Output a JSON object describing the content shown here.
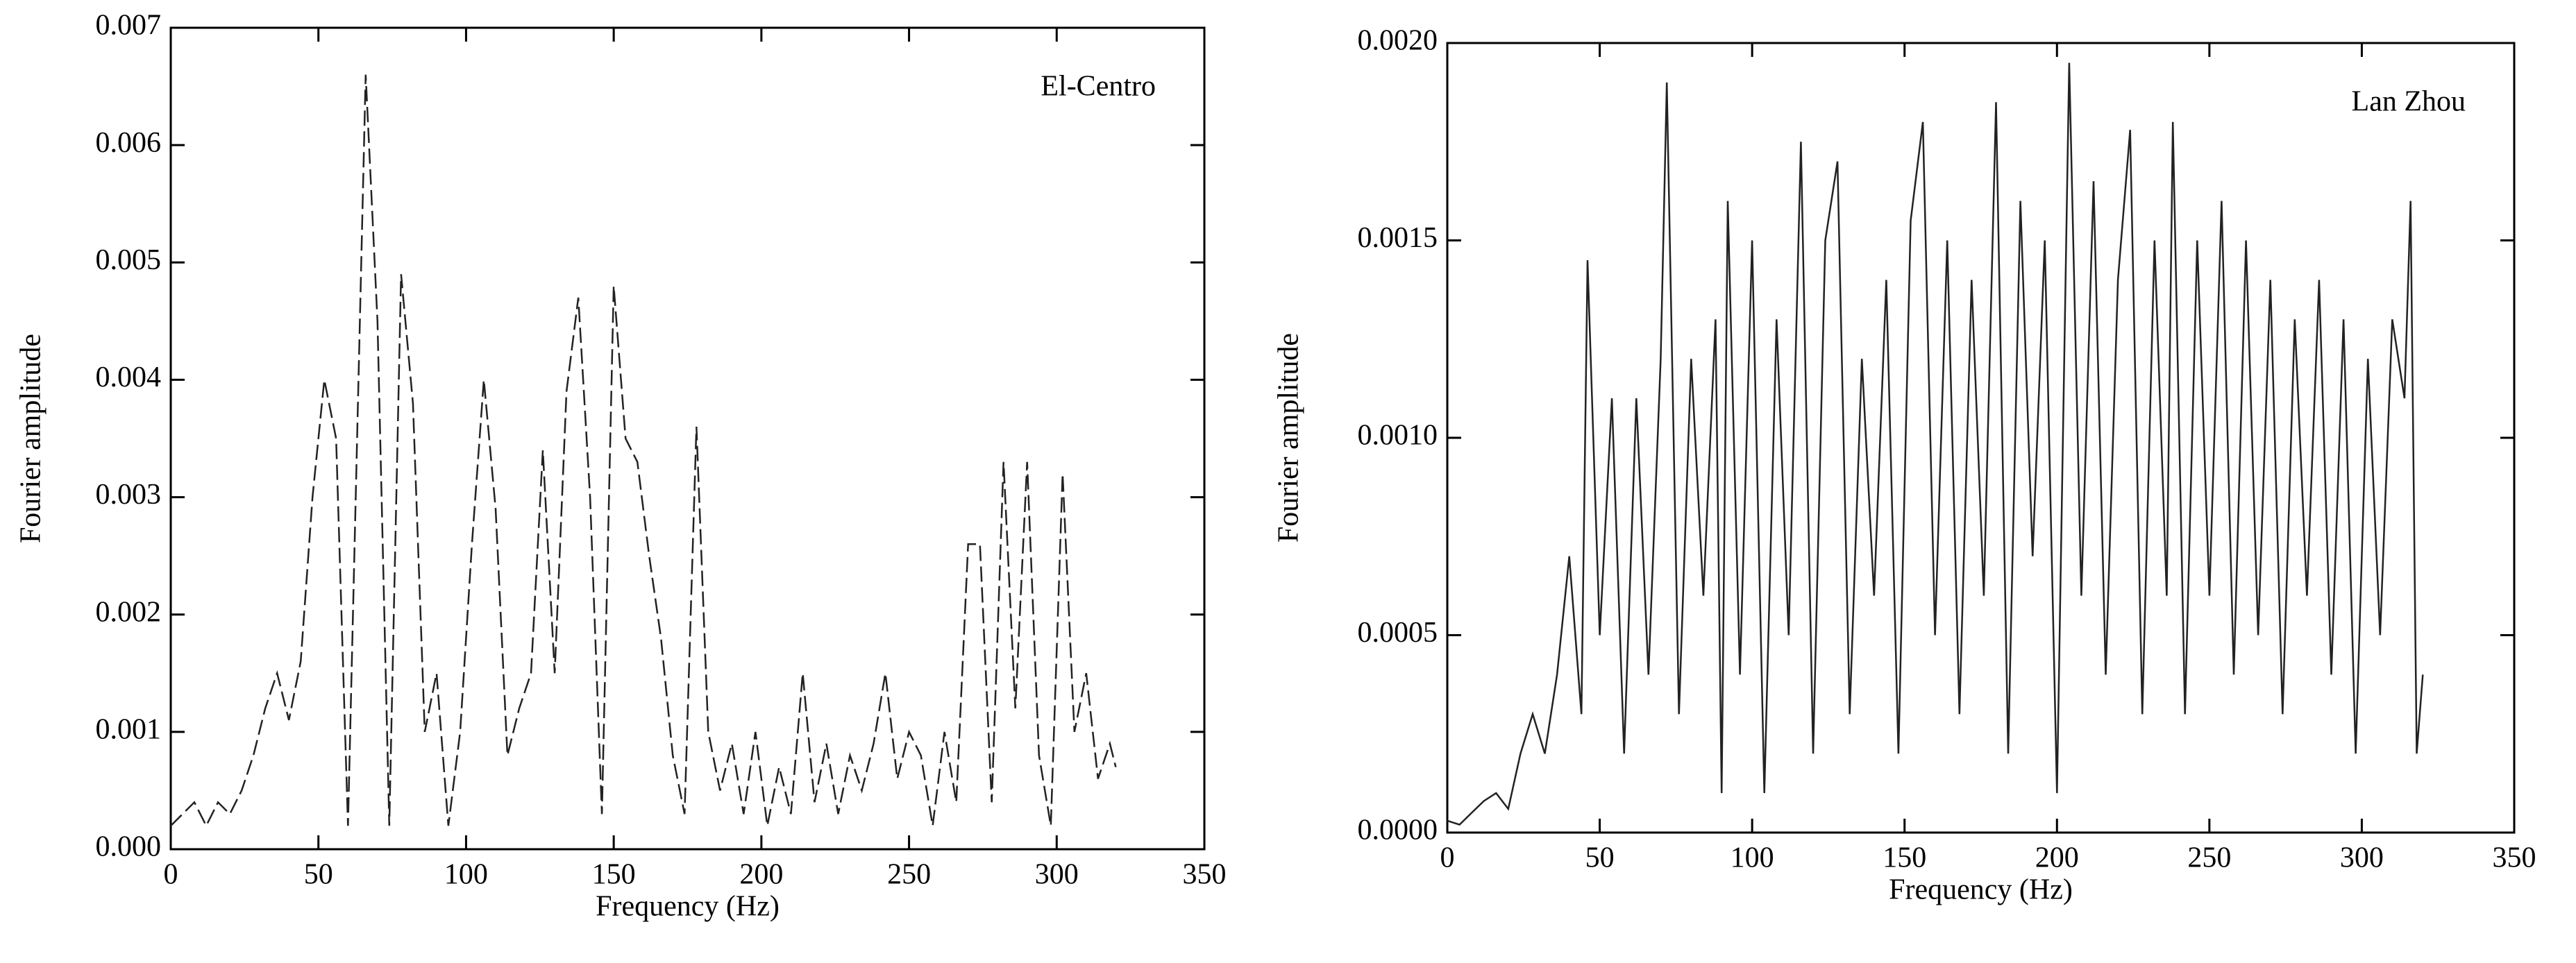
{
  "chart_data": [
    {
      "type": "line",
      "annotation": "El-Centro",
      "xlabel": "Frequency (Hz)",
      "ylabel": "Fourier amplitude",
      "xlim": [
        0,
        350
      ],
      "xticks": [
        0,
        50,
        100,
        150,
        200,
        250,
        300,
        350
      ],
      "ylim": [
        0,
        0.007
      ],
      "yticks": [
        {
          "value": 0,
          "label": "0.000"
        },
        {
          "value": 0.001,
          "label": "0.001"
        },
        {
          "value": 0.002,
          "label": "0.002"
        },
        {
          "value": 0.003,
          "label": "0.003"
        },
        {
          "value": 0.004,
          "label": "0.004"
        },
        {
          "value": 0.005,
          "label": "0.005"
        },
        {
          "value": 0.006,
          "label": "0.006"
        },
        {
          "value": 0.007,
          "label": "0.007"
        }
      ],
      "line_style": "dashed",
      "series": [
        {
          "color": "#222222",
          "x": [
            0,
            4,
            8,
            12,
            16,
            20,
            24,
            28,
            32,
            36,
            40,
            44,
            48,
            52,
            56,
            60,
            66,
            70,
            74,
            78,
            82,
            86,
            90,
            94,
            98,
            102,
            106,
            110,
            114,
            118,
            122,
            126,
            130,
            134,
            138,
            142,
            146,
            150,
            154,
            158,
            162,
            166,
            170,
            174,
            178,
            182,
            186,
            190,
            194,
            198,
            202,
            206,
            210,
            214,
            218,
            222,
            226,
            230,
            234,
            238,
            242,
            246,
            250,
            254,
            258,
            262,
            266,
            270,
            274,
            278,
            282,
            286,
            290,
            294,
            298,
            302,
            306,
            310,
            314,
            318,
            320
          ],
          "values": [
            0.0002,
            0.0003,
            0.0004,
            0.0002,
            0.0004,
            0.0003,
            0.0005,
            0.0008,
            0.0012,
            0.0015,
            0.0011,
            0.0016,
            0.003,
            0.004,
            0.0035,
            0.0002,
            0.0066,
            0.0045,
            0.0002,
            0.0049,
            0.0038,
            0.001,
            0.0015,
            0.0002,
            0.001,
            0.0026,
            0.004,
            0.0029,
            0.0008,
            0.0012,
            0.0015,
            0.0034,
            0.0015,
            0.0039,
            0.0047,
            0.003,
            0.0003,
            0.0048,
            0.0035,
            0.0033,
            0.0025,
            0.0018,
            0.0008,
            0.0003,
            0.0036,
            0.001,
            0.0005,
            0.0009,
            0.0003,
            0.001,
            0.0002,
            0.0007,
            0.0003,
            0.0015,
            0.0004,
            0.0009,
            0.0003,
            0.0008,
            0.0005,
            0.0009,
            0.0015,
            0.0006,
            0.001,
            0.0008,
            0.0002,
            0.001,
            0.0004,
            0.0026,
            0.0026,
            0.0004,
            0.0033,
            0.0012,
            0.0033,
            0.0008,
            0.0002,
            0.0032,
            0.001,
            0.0015,
            0.0006,
            0.0009,
            0.0007
          ]
        }
      ]
    },
    {
      "type": "line",
      "annotation": "Lan Zhou",
      "xlabel": "Frequency (Hz)",
      "ylabel": "Fourier amplitude",
      "xlim": [
        0,
        350
      ],
      "xticks": [
        0,
        50,
        100,
        150,
        200,
        250,
        300,
        350
      ],
      "ylim": [
        0,
        0.002
      ],
      "yticks": [
        {
          "value": 0,
          "label": "0.0000"
        },
        {
          "value": 0.0005,
          "label": "0.0005"
        },
        {
          "value": 0.001,
          "label": "0.0010"
        },
        {
          "value": 0.0015,
          "label": "0.0015"
        },
        {
          "value": 0.002,
          "label": "0.0020"
        }
      ],
      "line_style": "solid",
      "series": [
        {
          "color": "#222222",
          "x": [
            0,
            4,
            8,
            12,
            16,
            20,
            24,
            28,
            32,
            36,
            40,
            44,
            46,
            50,
            54,
            58,
            62,
            66,
            70,
            72,
            76,
            80,
            84,
            88,
            90,
            92,
            96,
            100,
            104,
            108,
            112,
            116,
            120,
            124,
            128,
            132,
            136,
            140,
            144,
            148,
            152,
            156,
            160,
            164,
            168,
            172,
            176,
            180,
            184,
            188,
            192,
            196,
            200,
            204,
            208,
            212,
            216,
            220,
            224,
            228,
            232,
            236,
            238,
            242,
            246,
            250,
            254,
            258,
            262,
            266,
            270,
            274,
            278,
            282,
            286,
            290,
            294,
            298,
            302,
            306,
            310,
            314,
            316,
            318,
            320
          ],
          "values": [
            3e-05,
            2e-05,
            5e-05,
            8e-05,
            0.0001,
            6e-05,
            0.0002,
            0.0003,
            0.0002,
            0.0004,
            0.0007,
            0.0003,
            0.00145,
            0.0005,
            0.0011,
            0.0002,
            0.0011,
            0.0004,
            0.0012,
            0.0019,
            0.0003,
            0.0012,
            0.0006,
            0.0013,
            0.0001,
            0.0016,
            0.0004,
            0.0015,
            0.0001,
            0.0013,
            0.0005,
            0.00175,
            0.0002,
            0.0015,
            0.0017,
            0.0003,
            0.0012,
            0.0006,
            0.0014,
            0.0002,
            0.00155,
            0.0018,
            0.0005,
            0.0015,
            0.0003,
            0.0014,
            0.0006,
            0.00185,
            0.0002,
            0.0016,
            0.0007,
            0.0015,
            0.0001,
            0.00195,
            0.0006,
            0.00165,
            0.0004,
            0.0014,
            0.00178,
            0.0003,
            0.0015,
            0.0006,
            0.0018,
            0.0003,
            0.0015,
            0.0006,
            0.0016,
            0.0004,
            0.0015,
            0.0005,
            0.0014,
            0.0003,
            0.0013,
            0.0006,
            0.0014,
            0.0004,
            0.0013,
            0.0002,
            0.0012,
            0.0005,
            0.0013,
            0.0011,
            0.0016,
            0.0002,
            0.0004
          ]
        }
      ]
    }
  ]
}
